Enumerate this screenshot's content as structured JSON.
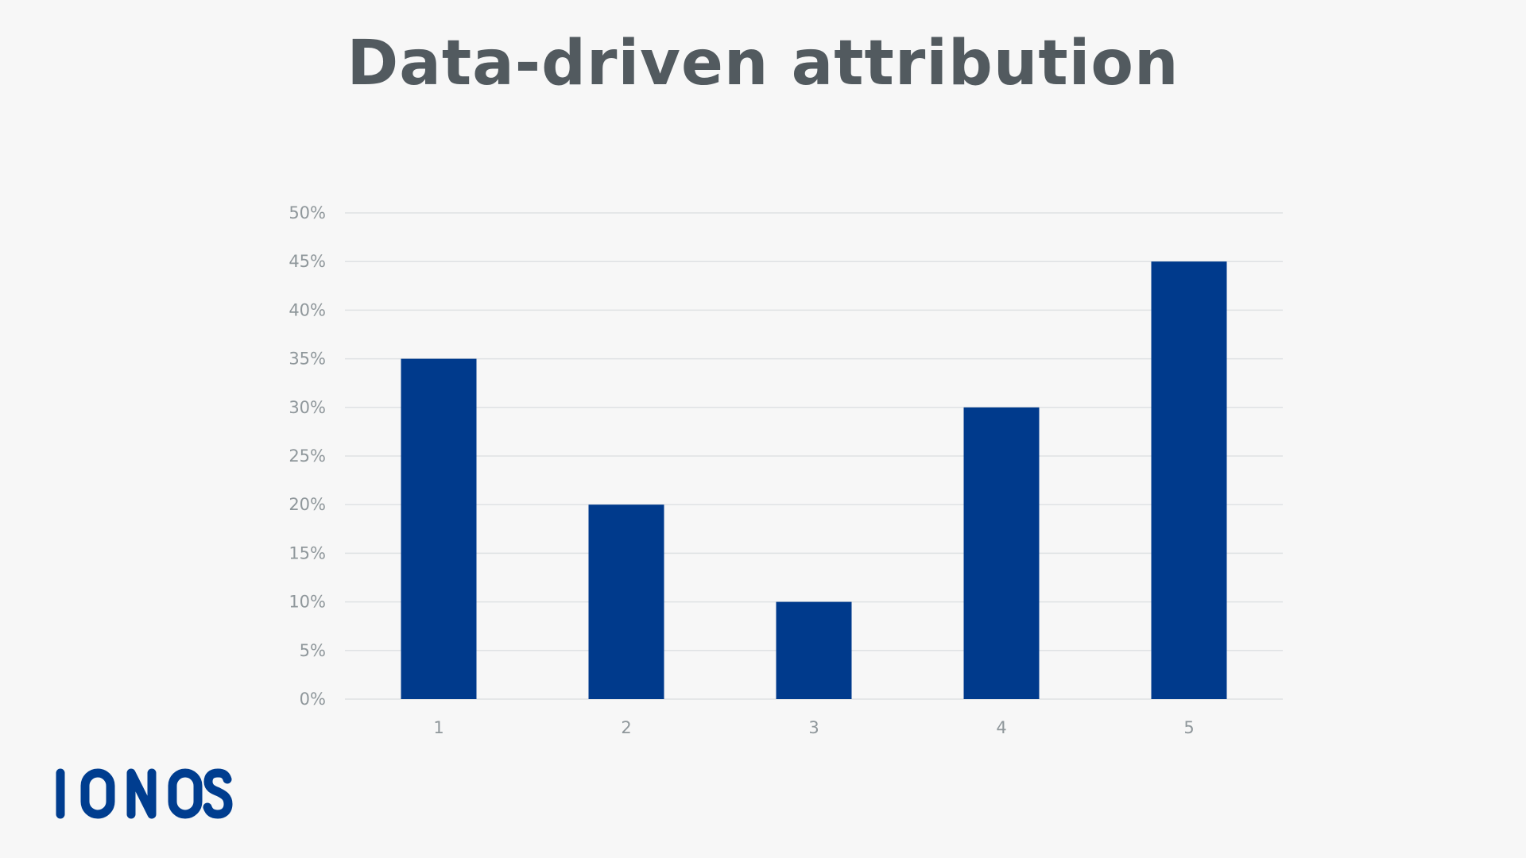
{
  "title": "Data-driven attribution",
  "logo": {
    "text": "IONOS",
    "color": "#003d8f"
  },
  "chart_data": {
    "type": "bar",
    "title": "Data-driven attribution",
    "xlabel": "",
    "ylabel": "",
    "categories": [
      "1",
      "2",
      "3",
      "4",
      "5"
    ],
    "values": [
      35,
      20,
      10,
      30,
      45
    ],
    "ylim": [
      0,
      50
    ],
    "yticks": [
      0,
      5,
      10,
      15,
      20,
      25,
      30,
      35,
      40,
      45,
      50
    ],
    "ytick_labels": [
      "0%",
      "5%",
      "10%",
      "15%",
      "20%",
      "25%",
      "30%",
      "35%",
      "40%",
      "45%",
      "50%"
    ],
    "grid": true,
    "legend": "none",
    "bar_color": "#003a8c",
    "grid_color": "#dfe2e4",
    "tick_color": "#8f979b"
  }
}
